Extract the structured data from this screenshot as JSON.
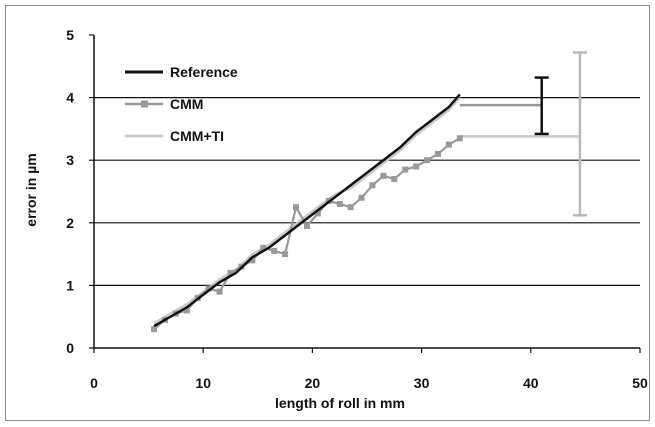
{
  "chart_data": {
    "type": "line",
    "xlabel": "length of roll in mm",
    "ylabel": "error in µm",
    "xlim": [
      0,
      50
    ],
    "ylim": [
      0,
      5
    ],
    "x_ticks": [
      "0",
      "10",
      "20",
      "30",
      "40",
      "50"
    ],
    "y_ticks": [
      "0",
      "1",
      "2",
      "3",
      "4",
      "5"
    ],
    "grid": "horizontal",
    "legend_position": "top-left",
    "series": [
      {
        "name": "Reference",
        "color": "#111111",
        "x": [
          5.5,
          7,
          8.5,
          10,
          11.5,
          13,
          14.5,
          16,
          17.5,
          19,
          20.5,
          22,
          23.5,
          25,
          26.5,
          28,
          29.5,
          31,
          32.5,
          33.5
        ],
        "y": [
          0.35,
          0.5,
          0.65,
          0.85,
          1.05,
          1.2,
          1.45,
          1.6,
          1.8,
          2.0,
          2.2,
          2.4,
          2.6,
          2.8,
          3.0,
          3.2,
          3.45,
          3.65,
          3.85,
          4.05
        ]
      },
      {
        "name": "CMM",
        "color": "#999999",
        "marker": "square",
        "x": [
          5.5,
          6.5,
          7.5,
          8.5,
          9.5,
          10.5,
          11.5,
          12.5,
          13.5,
          14.5,
          15.5,
          16.5,
          17.5,
          18.5,
          19.5,
          20.5,
          21.5,
          22.5,
          23.5,
          24.5,
          25.5,
          26.5,
          27.5,
          28.5,
          29.5,
          30.5,
          31.5,
          32.5,
          33.5
        ],
        "y": [
          0.3,
          0.45,
          0.55,
          0.6,
          0.8,
          0.95,
          0.9,
          1.2,
          1.3,
          1.4,
          1.6,
          1.55,
          1.5,
          2.25,
          1.95,
          2.15,
          2.35,
          2.3,
          2.25,
          2.4,
          2.6,
          2.75,
          2.7,
          2.85,
          2.9,
          3.0,
          3.1,
          3.25,
          3.35
        ]
      },
      {
        "name": "CMM+TI",
        "color": "#c8c8c8",
        "x": [
          5.5,
          7,
          8.5,
          10,
          11.5,
          13,
          14.5,
          16,
          17.5,
          19,
          20.5,
          22,
          23.5,
          25,
          26.5,
          28,
          29.5,
          31,
          32.5,
          33.5
        ],
        "y": [
          0.4,
          0.55,
          0.7,
          0.9,
          1.1,
          1.25,
          1.5,
          1.65,
          1.85,
          2.05,
          2.25,
          2.45,
          2.55,
          2.75,
          2.95,
          3.15,
          3.4,
          3.6,
          3.8,
          4.0
        ]
      }
    ],
    "error_bars": [
      {
        "x": 41,
        "center": 3.88,
        "low": 3.42,
        "high": 4.32,
        "color": "#111111"
      },
      {
        "x": 44.5,
        "center": 3.38,
        "low": 2.12,
        "high": 4.72,
        "color": "#b8b8b8"
      }
    ],
    "leaders": [
      {
        "from_x": 33.5,
        "to_x": 41,
        "y": 3.88,
        "color": "#999999"
      },
      {
        "from_x": 33.5,
        "to_x": 44.5,
        "y": 3.38,
        "color": "#c8c8c8"
      }
    ]
  }
}
